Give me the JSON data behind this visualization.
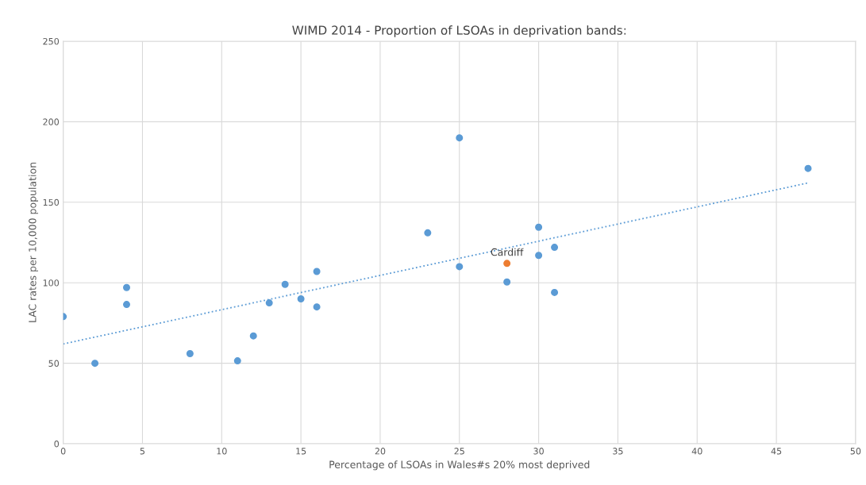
{
  "chart_data": {
    "type": "scatter",
    "title": "WIMD 2014 - Proportion of LSOAs in deprivation bands:",
    "xlabel": "Percentage of LSOAs in Wales#s 20% most deprived",
    "ylabel": "LAC rates per 10,000 population",
    "series": [
      {
        "color": "#5b9bd5",
        "marker": "circle",
        "x": [
          0,
          2,
          4,
          4,
          8,
          11,
          12,
          13,
          14,
          15,
          16,
          16,
          23,
          25,
          25,
          28,
          30,
          30,
          31,
          31,
          47
        ],
        "values": [
          79,
          50,
          97,
          86.5,
          56,
          51.5,
          67,
          87.5,
          99,
          90,
          107,
          85,
          131,
          190,
          110,
          100.5,
          134.5,
          117,
          122,
          94,
          171
        ]
      },
      {
        "color": "#ed7d31",
        "marker": "circle",
        "x": [
          28
        ],
        "values": [
          112
        ]
      },
      {
        "type": "line",
        "color": "#5b9bd5",
        "line_style": "dotted",
        "marker": "none",
        "x": [
          0,
          47
        ],
        "values": [
          62,
          162
        ]
      }
    ],
    "annotations": [
      {
        "text": "Cardiff",
        "x": 28,
        "y": 112
      }
    ],
    "xlim": [
      0,
      50
    ],
    "xticks": [
      0,
      5,
      10,
      15,
      20,
      25,
      30,
      35,
      40,
      45,
      50
    ],
    "ylim": [
      0,
      250
    ],
    "yticks": [
      0,
      50,
      100,
      150,
      200,
      250
    ],
    "grid": true,
    "legend": false
  }
}
